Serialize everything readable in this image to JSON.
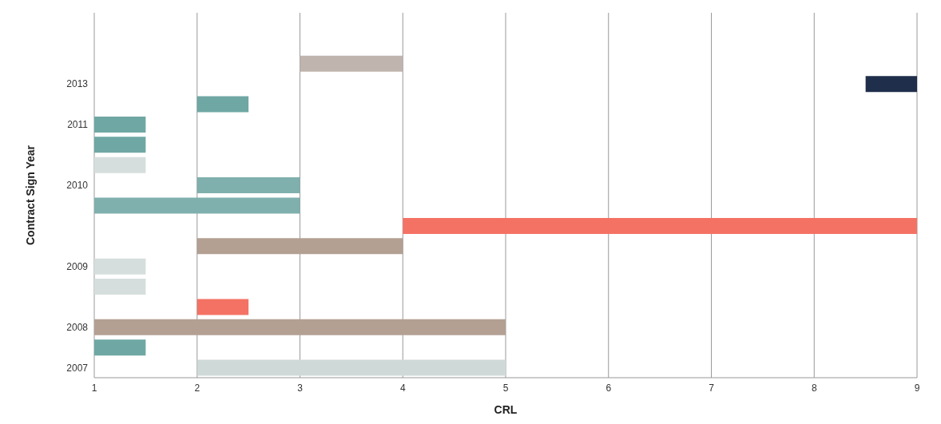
{
  "chart_data": {
    "type": "bar",
    "orientation": "horizontal",
    "xlabel": "CRL",
    "ylabel": "Contract Sign Year",
    "categories": [
      null,
      null,
      null,
      "2013",
      null,
      "2011",
      null,
      null,
      "2010",
      null,
      null,
      null,
      "2009",
      null,
      null,
      "2008",
      null,
      "2007"
    ],
    "base": [
      null,
      null,
      3,
      8.5,
      2,
      1,
      1,
      1,
      2,
      1,
      4,
      2,
      1,
      1,
      2,
      1,
      1,
      2
    ],
    "values": [
      null,
      null,
      1,
      0.5,
      0.5,
      0.5,
      0.5,
      0.5,
      1,
      2,
      5,
      2,
      0.5,
      0.5,
      0.5,
      4,
      0.5,
      3
    ],
    "colors": [
      "#ffffff",
      "#ffffff",
      "#c0b4ae",
      "#1f2e4a",
      "#6fa7a4",
      "#6fa7a4",
      "#6fa7a4",
      "#d5dedc",
      "#7fb0ad",
      "#7fb0ad",
      "#f47264",
      "#b3a093",
      "#d5dedc",
      "#d5dedc",
      "#f47264",
      "#b3a093",
      "#6fa7a4",
      "#cfd9d8"
    ],
    "xlim": [
      1,
      9
    ],
    "xticks": [
      1,
      2,
      3,
      4,
      5,
      6,
      7,
      8,
      9
    ],
    "grid": "x",
    "legend": false
  }
}
